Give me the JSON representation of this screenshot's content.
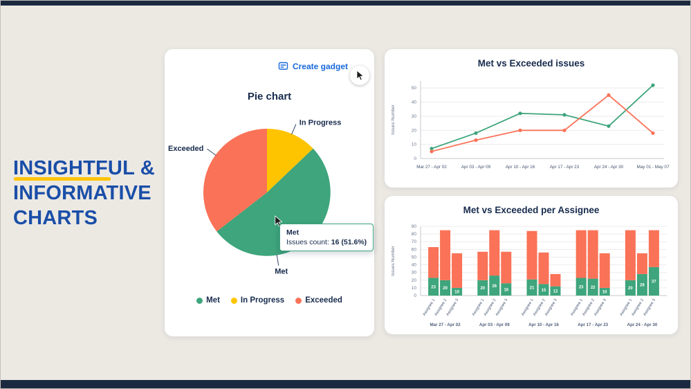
{
  "colors": {
    "met_green": "#3EA57C",
    "in_progress_yellow": "#FFC400",
    "exceeded_orange": "#FA7257",
    "accent_blue": "#1868DB",
    "headline_blue": "#1A4EA8",
    "navy_text": "#172B4D",
    "underline_yellow": "#FFC400"
  },
  "headline": {
    "lines": [
      "INSIGHTFUL &",
      "INFORMATIVE",
      "CHARTS"
    ]
  },
  "pie_card": {
    "create_gadget_label": "Create gadget",
    "title": "Pie chart",
    "tooltip": {
      "title": "Met",
      "label": "Issues count:",
      "value": "16 (51.6%)"
    },
    "legend": [
      {
        "label": "Met",
        "color": "#3EA57C"
      },
      {
        "label": "In Progress",
        "color": "#FFC400"
      },
      {
        "label": "Exceeded",
        "color": "#FA7257"
      }
    ]
  },
  "line_card": {
    "title": "Met vs Exceeded issues"
  },
  "bar_card": {
    "title": "Met vs Exceeded per Assignee"
  },
  "chart_data": [
    {
      "type": "pie",
      "title": "Pie chart",
      "slices": [
        {
          "label": "In Progress",
          "value": 4,
          "pct": 12.9,
          "color": "#FFC400"
        },
        {
          "label": "Met",
          "value": 16,
          "pct": 51.6,
          "color": "#3EA57C"
        },
        {
          "label": "Exceeded",
          "value": 11,
          "pct": 35.5,
          "color": "#FA7257"
        }
      ],
      "tooltip": {
        "slice": "Met",
        "issues_count": 16,
        "percent": "51.6%"
      }
    },
    {
      "type": "line",
      "title": "Met vs Exceeded issues",
      "ylabel": "Issues Number",
      "ylim": [
        0,
        55
      ],
      "yticks": [
        0,
        10,
        20,
        30,
        40,
        50
      ],
      "categories": [
        "Mar 27 - Apr 02",
        "Apr 03 - Apr 09",
        "Apr 10 - Apr 16",
        "Apr 17 - Apr 23",
        "Apr 24 - Apr 30",
        "May 01 - May 07"
      ],
      "series": [
        {
          "name": "Met",
          "color": "#3EA57C",
          "values": [
            7,
            18,
            32,
            31,
            23,
            52
          ]
        },
        {
          "name": "Exceeded",
          "color": "#FA7257",
          "values": [
            5,
            13,
            20,
            20,
            45,
            18
          ]
        }
      ]
    },
    {
      "type": "stacked_bar",
      "title": "Met vs Exceeded per Assignee",
      "ylabel": "Issues Number",
      "ylim": [
        0,
        90
      ],
      "yticks": [
        0,
        10,
        20,
        30,
        40,
        50,
        60,
        70,
        80,
        90
      ],
      "series_names": [
        "Met",
        "Exceeded"
      ],
      "groups": [
        {
          "label": "Mar 27 - Apr 02",
          "bars": [
            {
              "label": "Assignee 1",
              "met": 23,
              "exceeded": 40
            },
            {
              "label": "Assignee 2",
              "met": 20,
              "exceeded": 65
            },
            {
              "label": "Assignee 3",
              "met": 10,
              "exceeded": 45
            }
          ]
        },
        {
          "label": "Apr 03 - Apr 09",
          "bars": [
            {
              "label": "Assignee 1",
              "met": 20,
              "exceeded": 37
            },
            {
              "label": "Assignee 2",
              "met": 26,
              "exceeded": 59
            },
            {
              "label": "Assignee 3",
              "met": 16,
              "exceeded": 41
            }
          ]
        },
        {
          "label": "Apr 10 - Apr 16",
          "bars": [
            {
              "label": "Assignee 1",
              "met": 21,
              "exceeded": 63
            },
            {
              "label": "Assignee 2",
              "met": 15,
              "exceeded": 41
            },
            {
              "label": "Assignee 3",
              "met": 12,
              "exceeded": 16
            }
          ]
        },
        {
          "label": "Apr 17 - Apr 23",
          "bars": [
            {
              "label": "Assignee 1",
              "met": 23,
              "exceeded": 62
            },
            {
              "label": "Assignee 2",
              "met": 22,
              "exceeded": 63
            },
            {
              "label": "Assignee 3",
              "met": 10,
              "exceeded": 45
            }
          ]
        },
        {
          "label": "Apr 24 - Apr 30",
          "bars": [
            {
              "label": "Assignee 1",
              "met": 20,
              "exceeded": 65
            },
            {
              "label": "Assignee 2",
              "met": 28,
              "exceeded": 27
            },
            {
              "label": "Assignee 3",
              "met": 37,
              "exceeded": 48
            }
          ]
        }
      ]
    }
  ]
}
